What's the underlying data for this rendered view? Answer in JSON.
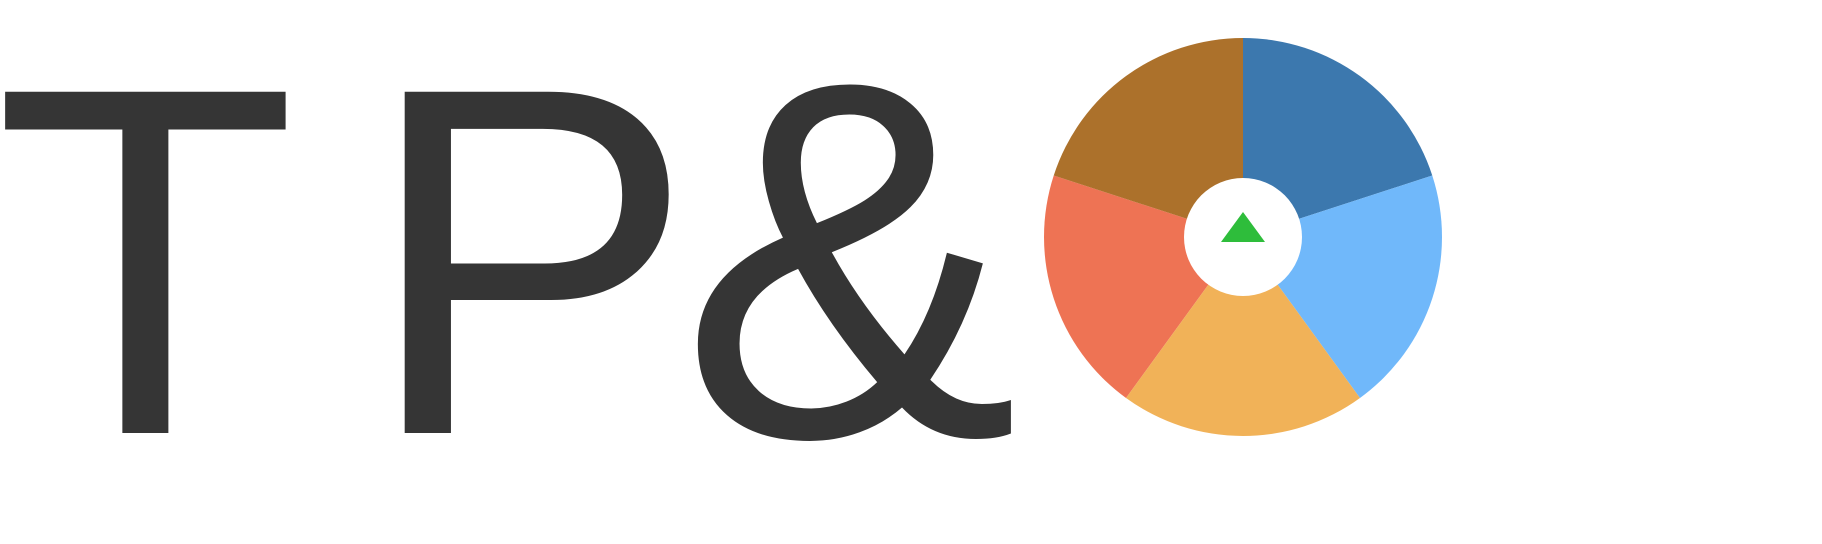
{
  "logo": {
    "letters": [
      "T",
      "P",
      "&"
    ],
    "glyph_color": "#353535",
    "background_color": "#ffffff"
  },
  "wheel": {
    "center_icon": "triangle-up-icon",
    "center_icon_color": "#2ebd3b",
    "hub_color": "#ffffff",
    "segments": [
      {
        "color": "#ee7354",
        "share": 0.2
      },
      {
        "color": "#ac712b",
        "share": 0.2
      },
      {
        "color": "#3c78ae",
        "share": 0.2
      },
      {
        "color": "#70b8fa",
        "share": 0.2
      },
      {
        "color": "#f1b258",
        "share": 0.2
      }
    ]
  }
}
